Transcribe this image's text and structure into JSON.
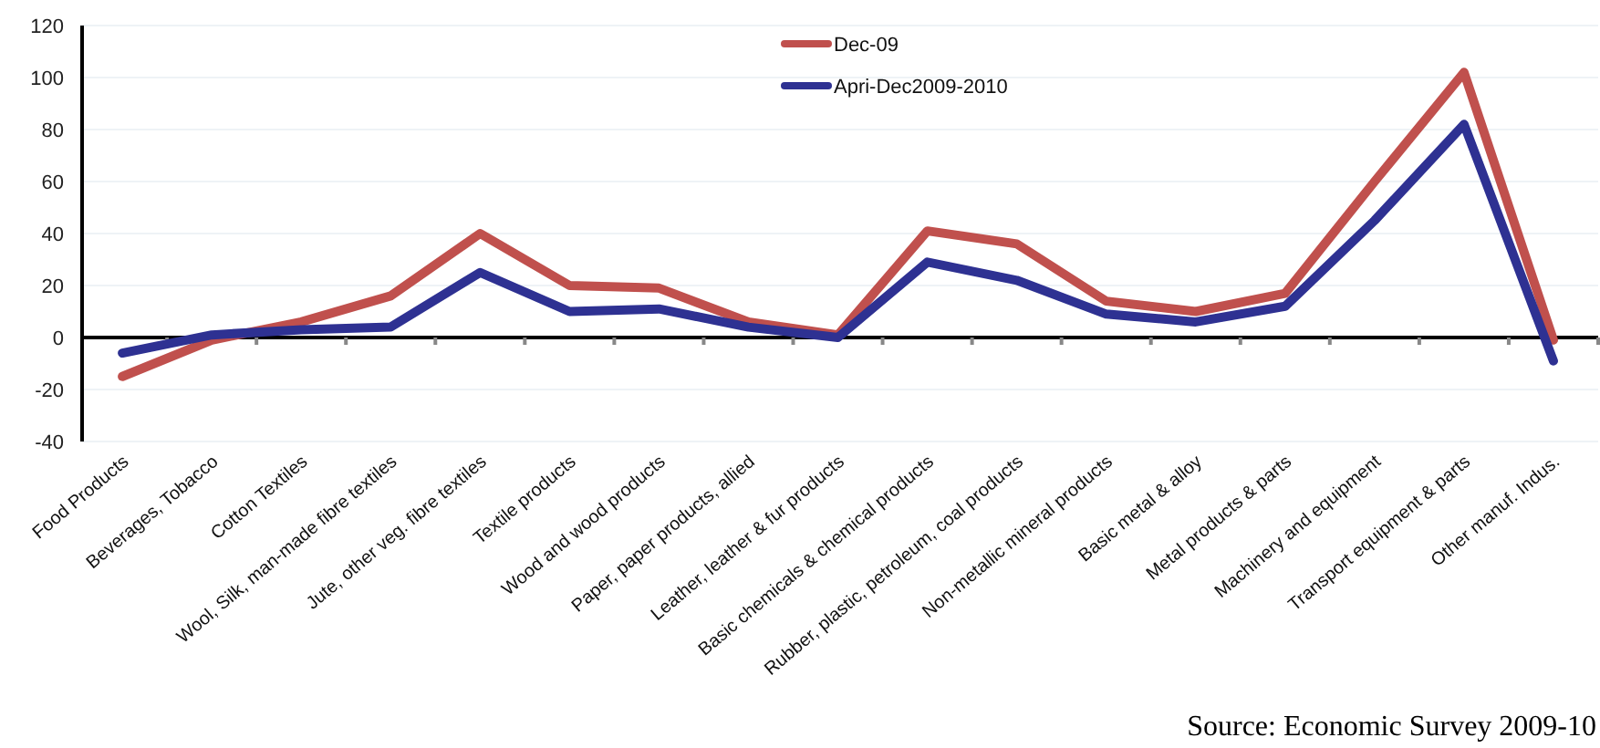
{
  "chart_data": {
    "type": "line",
    "categories": [
      "Food Products",
      "Beverages, Tobacco",
      "Cotton Textiles",
      "Wool, Silk,  man-made fibre textiles",
      "Jute, other veg. fibre textiles",
      "Textile products",
      "Wood and wood products",
      "Paper, paper products, allied",
      "Leather, leather & fur products",
      "Basic chemicals & chemical products",
      "Rubber, plastic, petroleum, coal products",
      "Non-metallic mineral products",
      "Basic metal & alloy",
      "Metal products & parts",
      "Machinery and equipment",
      "Transport equipment & parts",
      "Other manuf. Indus."
    ],
    "series": [
      {
        "name": "Dec-09",
        "color": "#c0504d",
        "values": [
          -15,
          -1,
          6,
          16,
          40,
          20,
          19,
          6,
          1,
          41,
          36,
          14,
          10,
          17,
          60,
          102,
          -1
        ]
      },
      {
        "name": "Apri-Dec2009-2010",
        "color": "#2e3192",
        "values": [
          -6,
          1,
          3,
          4,
          25,
          10,
          11,
          4,
          0,
          29,
          22,
          9,
          6,
          12,
          45,
          82,
          -9
        ]
      }
    ],
    "ylim": [
      -40,
      120
    ],
    "yticks": [
      -40,
      -20,
      0,
      20,
      40,
      60,
      80,
      100,
      120
    ],
    "grid": "y",
    "legend": "top",
    "marker": "none",
    "line_style": "solid",
    "annotations": [
      "Source: Economic Survey 2009-10"
    ]
  }
}
